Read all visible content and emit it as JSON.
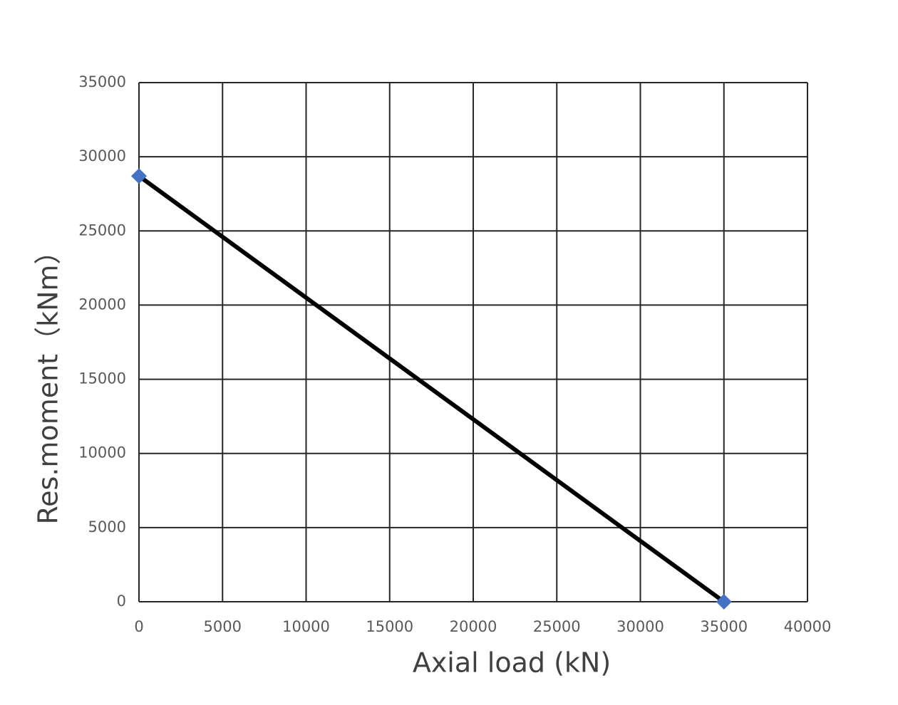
{
  "chart_data": {
    "type": "line",
    "x_label": "Axial load (kN)",
    "y_label": "Res.moment（kNm）",
    "x": [
      0,
      35000
    ],
    "series": [
      {
        "color": "#000000",
        "marker_color": "#4472c4",
        "values": [
          28700,
          0
        ]
      }
    ],
    "xlim": [
      0,
      40000
    ],
    "xticks": [
      0,
      5000,
      10000,
      15000,
      20000,
      25000,
      30000,
      35000,
      40000
    ],
    "ylim": [
      0,
      35000
    ],
    "yticks": [
      0,
      5000,
      10000,
      15000,
      20000,
      25000,
      30000,
      35000
    ],
    "grid": true
  }
}
